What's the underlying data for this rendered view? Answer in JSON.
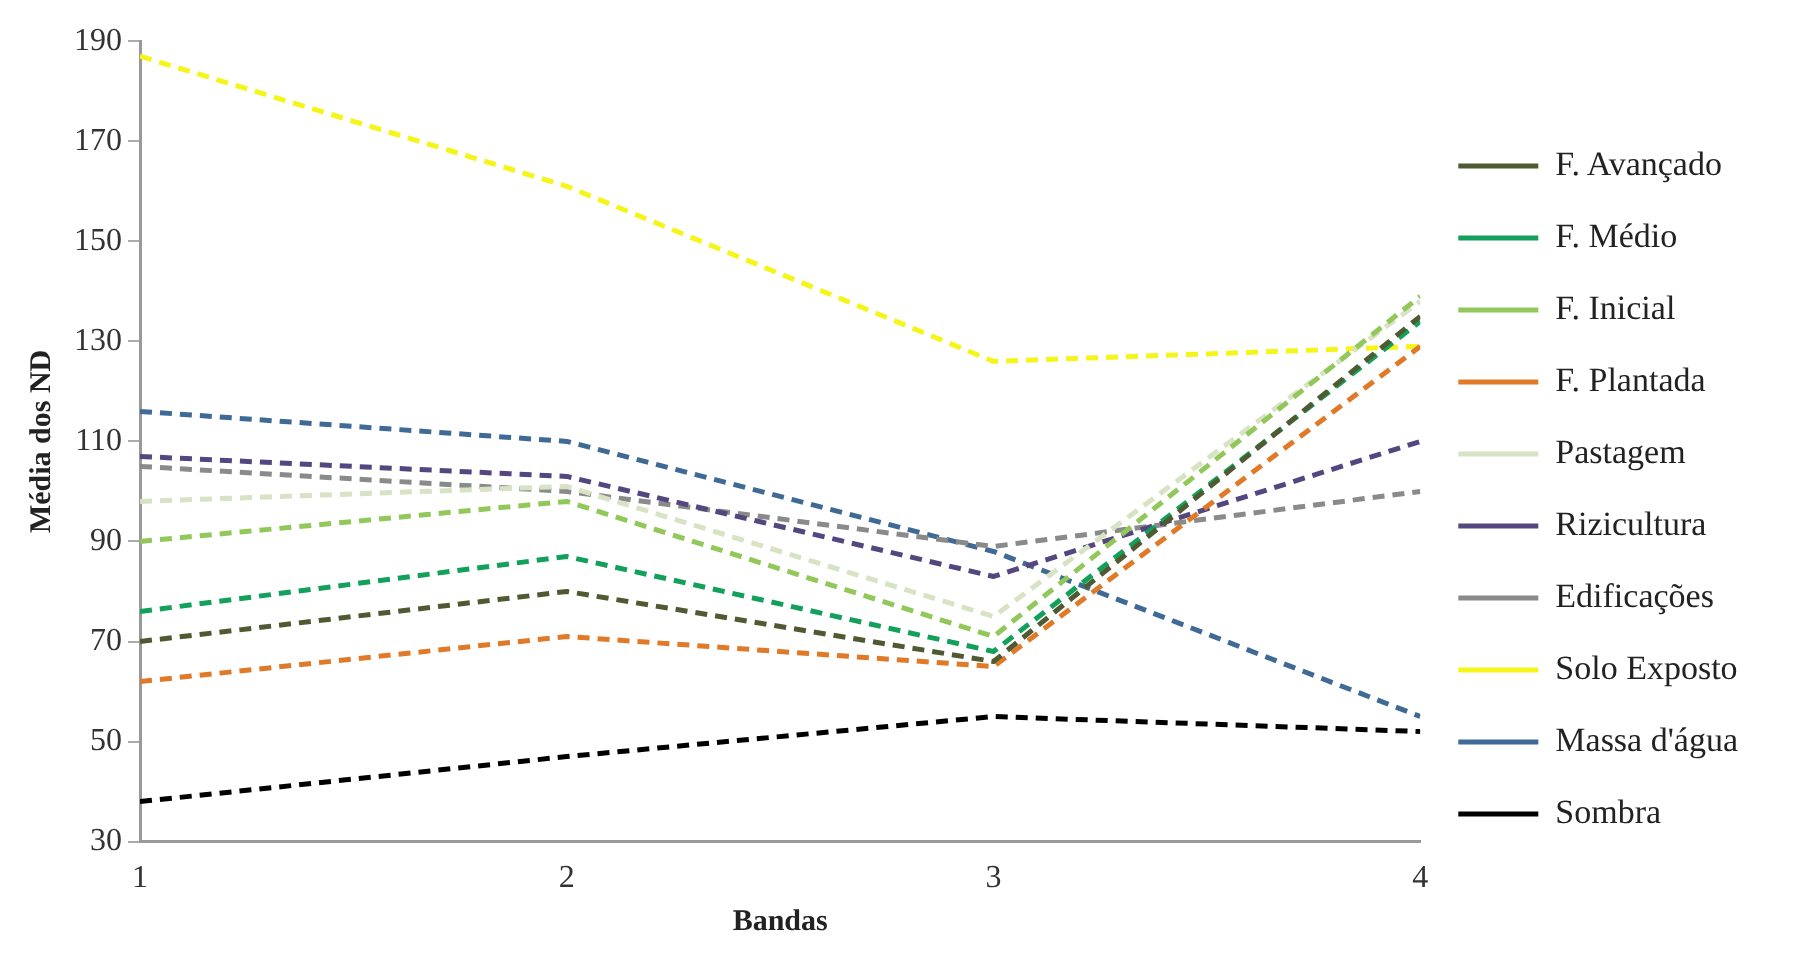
{
  "chart_data": {
    "type": "line",
    "xlabel": "Bandas",
    "ylabel": "Média dos ND",
    "x": [
      1,
      2,
      3,
      4
    ],
    "xlim": [
      1,
      4
    ],
    "xticks": [
      1,
      2,
      3,
      4
    ],
    "ylim": [
      30,
      190
    ],
    "yticks": [
      30,
      50,
      70,
      90,
      110,
      130,
      150,
      170,
      190
    ],
    "grid": false,
    "legend": "right",
    "marker": "none",
    "line_style": "dashed",
    "series": [
      {
        "name": "F. Avançado",
        "color": "#4f5a32",
        "values": [
          70,
          80,
          66,
          135
        ]
      },
      {
        "name": "F. Médio",
        "color": "#12a05a",
        "values": [
          76,
          87,
          68,
          134
        ]
      },
      {
        "name": "F. Inicial",
        "color": "#92c85a",
        "values": [
          90,
          98,
          71,
          139
        ]
      },
      {
        "name": "F. Plantada",
        "color": "#e07a28",
        "values": [
          62,
          71,
          65,
          129
        ]
      },
      {
        "name": "Pastagem",
        "color": "#d8e2c4",
        "values": [
          98,
          101,
          75,
          138
        ]
      },
      {
        "name": "Rizicultura",
        "color": "#54467e",
        "values": [
          107,
          103,
          83,
          110
        ]
      },
      {
        "name": "Edificações",
        "color": "#8a8a8a",
        "values": [
          105,
          100,
          89,
          100
        ]
      },
      {
        "name": "Solo Exposto",
        "color": "#f5f51a",
        "values": [
          187,
          161,
          126,
          129
        ]
      },
      {
        "name": "Massa d'água",
        "color": "#3f6a96",
        "values": [
          116,
          110,
          88,
          55
        ]
      },
      {
        "name": "Sombra",
        "color": "#000000",
        "values": [
          38,
          47,
          55,
          52
        ]
      }
    ]
  }
}
